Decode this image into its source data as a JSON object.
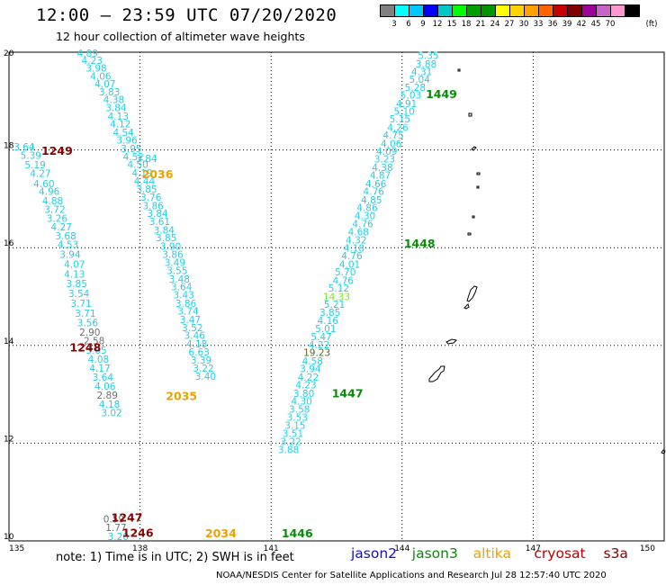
{
  "header": {
    "title": "12:00 – 23:59 UTC 07/20/2020",
    "subtitle": "12 hour collection of altimeter wave heights"
  },
  "colors": {
    "cyan": "#22cfe6",
    "gray": "#707070",
    "orange": "#f0a000",
    "green": "#0a8a0a",
    "maroon": "#8b0000",
    "light_green": "#7ee030",
    "olive": "#556b2f"
  },
  "legend": {
    "unit": "(ft)",
    "swatches": [
      "#808080",
      "#00ffff",
      "#00c8ff",
      "#0000ff",
      "#00c8c8",
      "#00ff00",
      "#00a000",
      "#009600",
      "#ffff00",
      "#ffd200",
      "#ffa000",
      "#ff6400",
      "#c80000",
      "#800000",
      "#a0009c",
      "#c864c8",
      "#ff96d2",
      "#000000"
    ],
    "labels": [
      "3",
      "6",
      "9",
      "12",
      "15",
      "18",
      "21",
      "24",
      "27",
      "30",
      "33",
      "36",
      "39",
      "42",
      "45",
      "70"
    ]
  },
  "axes": {
    "lon_ticks": [
      "135",
      "138",
      "141",
      "144",
      "147",
      "150"
    ],
    "lat_ticks": [
      "10",
      "12",
      "14",
      "16",
      "18",
      "20"
    ]
  },
  "track_labels": [
    {
      "text": "1249",
      "lon": 136.1,
      "lat": 17.9,
      "color": "maroon"
    },
    {
      "text": "1248",
      "lon": 136.75,
      "lat": 13.88,
      "color": "maroon"
    },
    {
      "text": "1247",
      "lon": 137.7,
      "lat": 10.4,
      "color": "maroon"
    },
    {
      "text": "1246",
      "lon": 137.95,
      "lat": 10.08,
      "color": "maroon"
    },
    {
      "text": "2036",
      "lon": 138.4,
      "lat": 17.42,
      "color": "orange"
    },
    {
      "text": "2035",
      "lon": 138.95,
      "lat": 12.88,
      "color": "orange"
    },
    {
      "text": "2034",
      "lon": 139.85,
      "lat": 10.07,
      "color": "orange"
    },
    {
      "text": "1449",
      "lon": 144.9,
      "lat": 19.06,
      "color": "green"
    },
    {
      "text": "1448",
      "lon": 144.4,
      "lat": 16.0,
      "color": "green"
    },
    {
      "text": "1447",
      "lon": 142.75,
      "lat": 12.94,
      "color": "green"
    },
    {
      "text": "1446",
      "lon": 141.6,
      "lat": 10.07,
      "color": "green"
    }
  ],
  "tracks": [
    {
      "name": "t1249",
      "points": [
        [
          "3.64",
          135.35,
          17.99,
          "cyan"
        ],
        [
          "5.39",
          135.5,
          17.82,
          "cyan"
        ],
        [
          "5.19",
          135.6,
          17.62,
          "cyan"
        ],
        [
          "4.27",
          135.72,
          17.45,
          "cyan"
        ],
        [
          "4.60",
          135.8,
          17.24,
          "cyan"
        ],
        [
          "4.96",
          135.92,
          17.08,
          "cyan"
        ],
        [
          "4.88",
          136.0,
          16.89,
          "cyan"
        ],
        [
          "3.72",
          136.05,
          16.71,
          "cyan"
        ],
        [
          "3.26",
          136.1,
          16.53,
          "cyan"
        ],
        [
          "4.27",
          136.2,
          16.35,
          "cyan"
        ],
        [
          "3.68",
          136.3,
          16.17,
          "cyan"
        ],
        [
          "4.53",
          136.35,
          15.99,
          "cyan"
        ],
        [
          "3.94",
          136.4,
          15.79,
          "cyan"
        ],
        [
          "4.07",
          136.5,
          15.59,
          "cyan"
        ],
        [
          "4.13",
          136.5,
          15.39,
          "cyan"
        ],
        [
          "3.85",
          136.55,
          15.19,
          "cyan"
        ],
        [
          "3.54",
          136.6,
          14.99,
          "cyan"
        ],
        [
          "3.71",
          136.65,
          14.79,
          "cyan"
        ],
        [
          "3.71",
          136.75,
          14.59,
          "cyan"
        ],
        [
          "3.56",
          136.8,
          14.39,
          "cyan"
        ],
        [
          "2.90",
          136.85,
          14.2,
          "gray"
        ],
        [
          "2.58",
          136.95,
          14.02,
          "gray"
        ],
        [
          "3.65",
          137.0,
          13.83,
          "cyan"
        ],
        [
          "4.08",
          137.05,
          13.65,
          "cyan"
        ],
        [
          "4.17",
          137.08,
          13.46,
          "cyan"
        ],
        [
          "3.64",
          137.15,
          13.28,
          "cyan"
        ],
        [
          "4.06",
          137.2,
          13.09,
          "cyan"
        ],
        [
          "2.89",
          137.25,
          12.91,
          "gray"
        ],
        [
          "4.18",
          137.3,
          12.73,
          "cyan"
        ],
        [
          "3.02",
          137.35,
          12.55,
          "cyan"
        ],
        [
          "0.59",
          137.4,
          10.38,
          "gray"
        ],
        [
          "1.77",
          137.45,
          10.2,
          "gray"
        ],
        [
          "3.20",
          137.5,
          10.02,
          "cyan"
        ]
      ]
    },
    {
      "name": "t2036",
      "points": [
        [
          "4.89",
          136.8,
          19.91,
          "cyan"
        ],
        [
          "4.23",
          136.9,
          19.76,
          "cyan"
        ],
        [
          "3.98",
          137.0,
          19.6,
          "cyan"
        ],
        [
          "4.06",
          137.1,
          19.44,
          "cyan"
        ],
        [
          "4.07",
          137.2,
          19.28,
          "cyan"
        ],
        [
          "3.83",
          137.3,
          19.12,
          "cyan"
        ],
        [
          "4.38",
          137.4,
          18.96,
          "cyan"
        ],
        [
          "3.84",
          137.45,
          18.79,
          "cyan"
        ],
        [
          "4.13",
          137.5,
          18.62,
          "cyan"
        ],
        [
          "4.12",
          137.55,
          18.46,
          "cyan"
        ],
        [
          "4.54",
          137.62,
          18.29,
          "cyan"
        ],
        [
          "3.96",
          137.7,
          18.13,
          "cyan"
        ],
        [
          "3.95",
          137.8,
          17.96,
          "cyan"
        ],
        [
          "4.52",
          137.85,
          17.79,
          "cyan"
        ],
        [
          "4.50",
          137.95,
          17.63,
          "cyan"
        ],
        [
          "4.19",
          138.05,
          17.46,
          "cyan"
        ],
        [
          "4.44",
          138.1,
          17.29,
          "cyan"
        ],
        [
          "3.85",
          138.15,
          17.13,
          "cyan"
        ],
        [
          "3.76",
          138.25,
          16.96,
          "cyan"
        ],
        [
          "3.86",
          138.3,
          16.79,
          "cyan"
        ],
        [
          "3.84",
          138.4,
          16.63,
          "cyan"
        ],
        [
          "3.61",
          138.45,
          16.46,
          "cyan"
        ],
        [
          "3.84",
          138.55,
          16.29,
          "cyan"
        ],
        [
          "3.85",
          138.6,
          16.13,
          "cyan"
        ],
        [
          "3.90",
          138.7,
          15.96,
          "cyan"
        ],
        [
          "3.86",
          138.75,
          15.79,
          "cyan"
        ],
        [
          "3.49",
          138.8,
          15.63,
          "cyan"
        ],
        [
          "3.55",
          138.85,
          15.46,
          "cyan"
        ],
        [
          "3.48",
          138.9,
          15.29,
          "cyan"
        ],
        [
          "3.64",
          138.95,
          15.13,
          "cyan"
        ],
        [
          "3.43",
          139.0,
          14.96,
          "cyan"
        ],
        [
          "3.86",
          139.05,
          14.79,
          "cyan"
        ],
        [
          "3.74",
          139.1,
          14.63,
          "cyan"
        ],
        [
          "3.47",
          139.15,
          14.46,
          "cyan"
        ],
        [
          "3.52",
          139.2,
          14.29,
          "cyan"
        ],
        [
          "3.46",
          139.25,
          14.13,
          "cyan"
        ],
        [
          "4.18",
          139.3,
          13.96,
          "cyan"
        ],
        [
          "6.63",
          139.35,
          13.79,
          "cyan"
        ],
        [
          "3.39",
          139.4,
          13.63,
          "cyan"
        ],
        [
          "3.22",
          139.45,
          13.46,
          "cyan"
        ],
        [
          "3.40",
          139.5,
          13.3,
          "cyan"
        ]
      ]
    },
    {
      "name": "t1449",
      "points": [
        [
          "5.35",
          144.6,
          19.86,
          "cyan"
        ],
        [
          "3.88",
          144.55,
          19.69,
          "cyan"
        ],
        [
          "4.31",
          144.45,
          19.53,
          "cyan"
        ],
        [
          "5.04",
          144.4,
          19.37,
          "cyan"
        ],
        [
          "5.28",
          144.3,
          19.21,
          "cyan"
        ],
        [
          "5.03",
          144.2,
          19.05,
          "cyan"
        ],
        [
          "4.91",
          144.1,
          18.88,
          "cyan"
        ],
        [
          "5.10",
          144.05,
          18.72,
          "cyan"
        ],
        [
          "5.15",
          143.95,
          18.56,
          "cyan"
        ],
        [
          "4.26",
          143.9,
          18.39,
          "cyan"
        ],
        [
          "4.75",
          143.8,
          18.23,
          "cyan"
        ],
        [
          "4.06",
          143.75,
          18.06,
          "cyan"
        ],
        [
          "4.09",
          143.65,
          17.9,
          "cyan"
        ],
        [
          "3.23",
          143.6,
          17.74,
          "cyan"
        ],
        [
          "4.38",
          143.55,
          17.57,
          "cyan"
        ],
        [
          "4.87",
          143.5,
          17.41,
          "cyan"
        ],
        [
          "4.66",
          143.4,
          17.24,
          "cyan"
        ],
        [
          "4.76",
          143.35,
          17.08,
          "cyan"
        ],
        [
          "4.85",
          143.3,
          16.91,
          "cyan"
        ],
        [
          "4.86",
          143.2,
          16.75,
          "cyan"
        ],
        [
          "4.30",
          143.15,
          16.58,
          "cyan"
        ],
        [
          "4.76",
          143.1,
          16.42,
          "cyan"
        ],
        [
          "4.68",
          143.0,
          16.25,
          "cyan"
        ],
        [
          "4.32",
          142.95,
          16.09,
          "cyan"
        ],
        [
          "4.18",
          142.9,
          15.92,
          "cyan"
        ],
        [
          "4.76",
          142.85,
          15.76,
          "cyan"
        ],
        [
          "4.01",
          142.8,
          15.59,
          "cyan"
        ],
        [
          "5.70",
          142.7,
          15.43,
          "cyan"
        ],
        [
          "4.76",
          142.65,
          15.26,
          "cyan"
        ],
        [
          "5.12",
          142.55,
          15.1,
          "cyan"
        ],
        [
          "14.33",
          142.5,
          14.93,
          "light_green"
        ],
        [
          "5.21",
          142.45,
          14.77,
          "cyan"
        ],
        [
          "3.85",
          142.35,
          14.6,
          "cyan"
        ],
        [
          "4.16",
          142.3,
          14.44,
          "cyan"
        ],
        [
          "5.01",
          142.25,
          14.27,
          "cyan"
        ],
        [
          "5.47",
          142.15,
          14.11,
          "cyan"
        ],
        [
          "4.22",
          142.1,
          13.94,
          "cyan"
        ],
        [
          "19.23",
          142.05,
          13.78,
          "olive"
        ],
        [
          "4.58",
          141.95,
          13.61,
          "cyan"
        ],
        [
          "3.94",
          141.9,
          13.45,
          "cyan"
        ],
        [
          "4.22",
          141.85,
          13.28,
          "cyan"
        ],
        [
          "4.23",
          141.8,
          13.12,
          "cyan"
        ],
        [
          "3.80",
          141.75,
          12.95,
          "cyan"
        ],
        [
          "4.30",
          141.7,
          12.79,
          "cyan"
        ],
        [
          "3.58",
          141.65,
          12.62,
          "cyan"
        ],
        [
          "3.53",
          141.6,
          12.46,
          "cyan"
        ],
        [
          "3.15",
          141.55,
          12.29,
          "cyan"
        ],
        [
          "3.51",
          141.5,
          12.13,
          "cyan"
        ],
        [
          "3.22",
          141.45,
          11.96,
          "cyan"
        ],
        [
          "3.88",
          141.4,
          11.8,
          "cyan"
        ]
      ]
    }
  ],
  "extra_points": [
    {
      "text": "3.84",
      "lon": 138.15,
      "lat": 17.75,
      "color": "cyan"
    }
  ],
  "footer": {
    "note": "note:  1) Time is in UTC;  2) SWH is in feet",
    "satellites": [
      {
        "label": "jason2",
        "color": "#1010d0"
      },
      {
        "label": "jason3",
        "color": "#0a8a0a"
      },
      {
        "label": "altika",
        "color": "#f0a000"
      },
      {
        "label": "cryosat",
        "color": "#c00000"
      },
      {
        "label": "s3a",
        "color": "#8b0000"
      }
    ],
    "credit": "NOAA/NESDIS Center for Satellite Applications and Research    Jul 28 12:57:40 UTC 2020"
  }
}
